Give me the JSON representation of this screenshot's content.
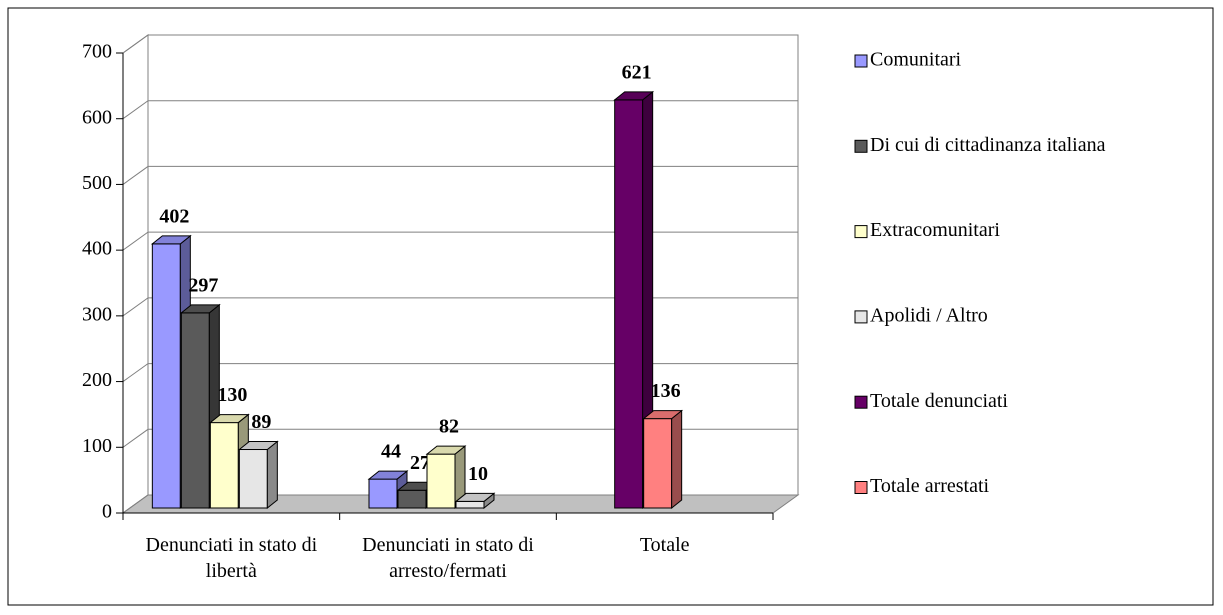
{
  "chart_data": {
    "type": "bar3d",
    "categories": [
      "Denunciati in stato di libertà",
      "Denunciati in stato di arresto/fermati",
      "Totale"
    ],
    "series": [
      {
        "name": "Comunitari",
        "color": "#9999ff",
        "values": [
          402,
          44,
          null
        ]
      },
      {
        "name": "Di cui di cittadinanza italiana",
        "color": "#5a5a5a",
        "values": [
          297,
          27,
          null
        ]
      },
      {
        "name": "Extracomunitari",
        "color": "#ffffcc",
        "values": [
          130,
          82,
          null
        ]
      },
      {
        "name": "Apolidi / Altro",
        "color": "#e6e6e6",
        "values": [
          89,
          10,
          null
        ]
      },
      {
        "name": "Totale denunciati",
        "color": "#660066",
        "values": [
          null,
          null,
          621
        ]
      },
      {
        "name": "Totale arrestati",
        "color": "#ff8080",
        "values": [
          null,
          null,
          136
        ]
      }
    ],
    "ylim": [
      0,
      700
    ],
    "yticks": [
      0,
      100,
      200,
      300,
      400,
      500,
      600,
      700
    ],
    "grid": true,
    "legend": "right"
  }
}
